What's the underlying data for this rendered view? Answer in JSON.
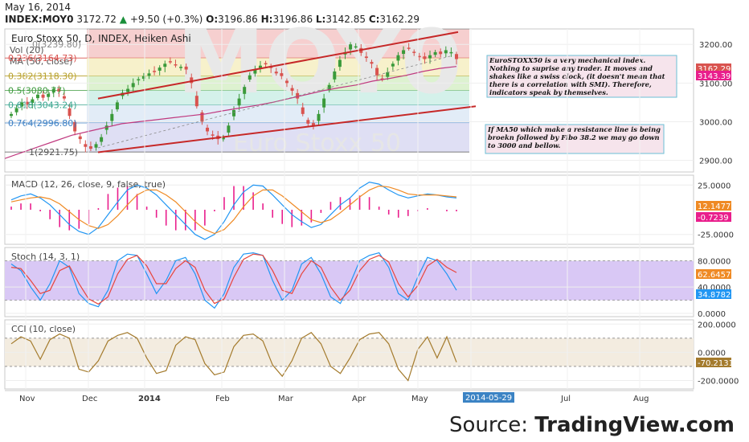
{
  "header": {
    "date": "May 16, 2014",
    "symbol": "INDEX:MOY0",
    "last": "3172.72",
    "change": "+9.50 (+0.3%)",
    "o_label": "O:",
    "o": "3196.86",
    "h_label": "H:",
    "h": "3196.86",
    "l_label": "L:",
    "l": "3142.85",
    "c_label": "C:",
    "c": "3162.29"
  },
  "watermark": {
    "big": "MOY0",
    "sub": "Euro Stoxx 50"
  },
  "main_panel": {
    "title": "Euro Stoxx 50, D, INDEX, Heiken Ashi",
    "vol_label": "Vol (20)",
    "ma_label": "MA (50, close)",
    "price_badge": "3162.29",
    "ma_badge": "3143.39",
    "fib_levels": [
      {
        "label": "0.236(3164.73)",
        "color": "#d9534f",
        "fill": "#f4c7c7"
      },
      {
        "label": "0.382(3118.30)",
        "color": "#b8a02a",
        "fill": "#f6efc2"
      },
      {
        "label": "0.5(3080.77)",
        "color": "#3d9a3d",
        "fill": "#d7f0c8"
      },
      {
        "label": "0.618(3043.24)",
        "color": "#3aa58f",
        "fill": "#cdeee6"
      },
      {
        "label": "0.764(2996.80)",
        "color": "#3b7fc4",
        "fill": "#dde9f6"
      },
      {
        "label": "1(2921.75)",
        "color": "#555555",
        "fill": "#d9d9f2"
      }
    ],
    "top_fib_label": "0(3239.80)",
    "note1": "EuroSTOXX50 is a very mechanical index. Nothing to suprise any trader. It moves and shakes like a swiss clock, (it doesn't mean that there is a correlation with SMI). Therefore, indicators speak by themselves.",
    "note2": "If MA50 which make a resistance line is being broekn followed by Fibo 38.2 we may go down to 3000 and bellow."
  },
  "macd_panel": {
    "title": "MACD (12, 26, close, 9, false, true)",
    "badge_macd": "12.1477",
    "badge_hist": "-0.7239"
  },
  "stoch_panel": {
    "title": "Stoch (14, 3, 1)",
    "badge_k": "62.6457",
    "badge_d": "34.8782"
  },
  "cci_panel": {
    "title": "CCI (10, close)",
    "badge": "-70.2131"
  },
  "x_axis": {
    "months": [
      "Nov",
      "Dec",
      "2014",
      "Feb",
      "Mar",
      "Apr",
      "May",
      "2014-05-29",
      "Jul",
      "Aug"
    ]
  },
  "source": {
    "prefix": "Source: ",
    "brand": "TradingView.com"
  },
  "chart_data": [
    {
      "type": "candlestick",
      "title": "Euro Stoxx 50, D, INDEX, Heiken Ashi",
      "y_ticks": [
        "3200.00",
        "3100.00",
        "3000.00",
        "2900.00"
      ],
      "ylim": [
        2870,
        3240
      ],
      "ohlc_close_path": [
        3020,
        3035,
        3050,
        3045,
        3058,
        3070,
        3062,
        3072,
        3085,
        3078,
        3060,
        3015,
        2975,
        2955,
        2935,
        2930,
        2942,
        2960,
        2990,
        3020,
        3050,
        3075,
        3085,
        3100,
        3110,
        3118,
        3125,
        3130,
        3140,
        3150,
        3155,
        3148,
        3142,
        3135,
        3100,
        3040,
        3000,
        2975,
        2965,
        2955,
        2960,
        2990,
        3030,
        3060,
        3090,
        3120,
        3135,
        3145,
        3150,
        3140,
        3125,
        3118,
        3100,
        3080,
        3060,
        3020,
        2995,
        2990,
        3020,
        3060,
        3095,
        3130,
        3160,
        3180,
        3200,
        3195,
        3178,
        3165,
        3150,
        3120,
        3110,
        3128,
        3150,
        3172,
        3185,
        3190,
        3178,
        3168,
        3162,
        3172,
        3180,
        3175,
        3185,
        3180,
        3162
      ],
      "series": [
        {
          "name": "MA (50, close)",
          "values": [
            2905,
            2920,
            2935,
            2950,
            2965,
            2975,
            2985,
            2995,
            3000,
            3005,
            3010,
            3015,
            3020,
            3028,
            3035,
            3042,
            3050,
            3060,
            3070,
            3080,
            3088,
            3095,
            3105,
            3112,
            3120,
            3130,
            3138,
            3143
          ]
        }
      ],
      "channel_upper": [
        [
          0,
          3060
        ],
        [
          1,
          3232
        ]
      ],
      "channel_lower": [
        [
          0,
          2921
        ],
        [
          1,
          3040
        ]
      ],
      "fib_values": [
        3239.8,
        3164.73,
        3118.3,
        3080.77,
        3043.24,
        2996.8,
        2921.75
      ]
    },
    {
      "type": "line",
      "title": "MACD (12, 26, close, 9, false, true)",
      "y_ticks": [
        "25.0000",
        "-25.0000"
      ],
      "ylim": [
        -35,
        35
      ],
      "series": [
        {
          "name": "MACD",
          "values": [
            10,
            14,
            16,
            12,
            5,
            -5,
            -15,
            -22,
            -25,
            -18,
            -5,
            8,
            20,
            25,
            22,
            15,
            5,
            -5,
            -15,
            -25,
            -30,
            -25,
            -12,
            5,
            18,
            25,
            24,
            15,
            5,
            -5,
            -12,
            -18,
            -15,
            -5,
            5,
            12,
            22,
            28,
            26,
            20,
            15,
            12,
            14,
            16,
            15,
            13,
            12
          ]
        },
        {
          "name": "Signal",
          "values": [
            8,
            10,
            12,
            13,
            11,
            6,
            -2,
            -10,
            -16,
            -19,
            -15,
            -6,
            5,
            15,
            20,
            20,
            15,
            8,
            -2,
            -12,
            -20,
            -24,
            -20,
            -10,
            3,
            14,
            20,
            20,
            14,
            6,
            -2,
            -10,
            -13,
            -10,
            -3,
            5,
            13,
            20,
            24,
            23,
            20,
            16,
            15,
            15,
            15,
            14,
            13
          ]
        }
      ]
    },
    {
      "type": "line",
      "title": "Stoch (14, 3, 1)",
      "y_ticks": [
        "80.0000",
        "40.0000",
        "0.0000"
      ],
      "ylim": [
        -5,
        100
      ],
      "series": [
        {
          "name": "%K",
          "values": [
            75,
            65,
            40,
            20,
            45,
            80,
            70,
            30,
            15,
            10,
            35,
            80,
            90,
            88,
            60,
            30,
            50,
            80,
            85,
            60,
            20,
            8,
            30,
            70,
            90,
            92,
            88,
            50,
            20,
            35,
            75,
            85,
            60,
            25,
            15,
            45,
            80,
            88,
            92,
            70,
            30,
            20,
            55,
            85,
            80,
            60,
            35
          ]
        },
        {
          "name": "%D",
          "values": [
            70,
            68,
            50,
            30,
            35,
            65,
            72,
            45,
            22,
            14,
            25,
            60,
            82,
            88,
            72,
            45,
            45,
            68,
            80,
            70,
            35,
            15,
            22,
            55,
            82,
            90,
            88,
            65,
            35,
            30,
            60,
            80,
            70,
            40,
            20,
            35,
            65,
            82,
            88,
            78,
            45,
            25,
            42,
            72,
            82,
            70,
            62
          ]
        }
      ]
    },
    {
      "type": "line",
      "title": "CCI (10, close)",
      "y_ticks": [
        "200.0000",
        "0.0000",
        "-200.0000"
      ],
      "ylim": [
        -260,
        230
      ],
      "series": [
        {
          "name": "CCI",
          "values": [
            60,
            110,
            80,
            -50,
            90,
            130,
            100,
            -120,
            -140,
            -60,
            80,
            120,
            140,
            100,
            -40,
            -150,
            -130,
            50,
            110,
            90,
            -80,
            -160,
            -140,
            40,
            120,
            130,
            80,
            -90,
            -170,
            -60,
            100,
            140,
            60,
            -100,
            -150,
            -40,
            90,
            130,
            140,
            60,
            -120,
            -200,
            20,
            110,
            -40,
            110,
            -70
          ]
        }
      ]
    }
  ]
}
